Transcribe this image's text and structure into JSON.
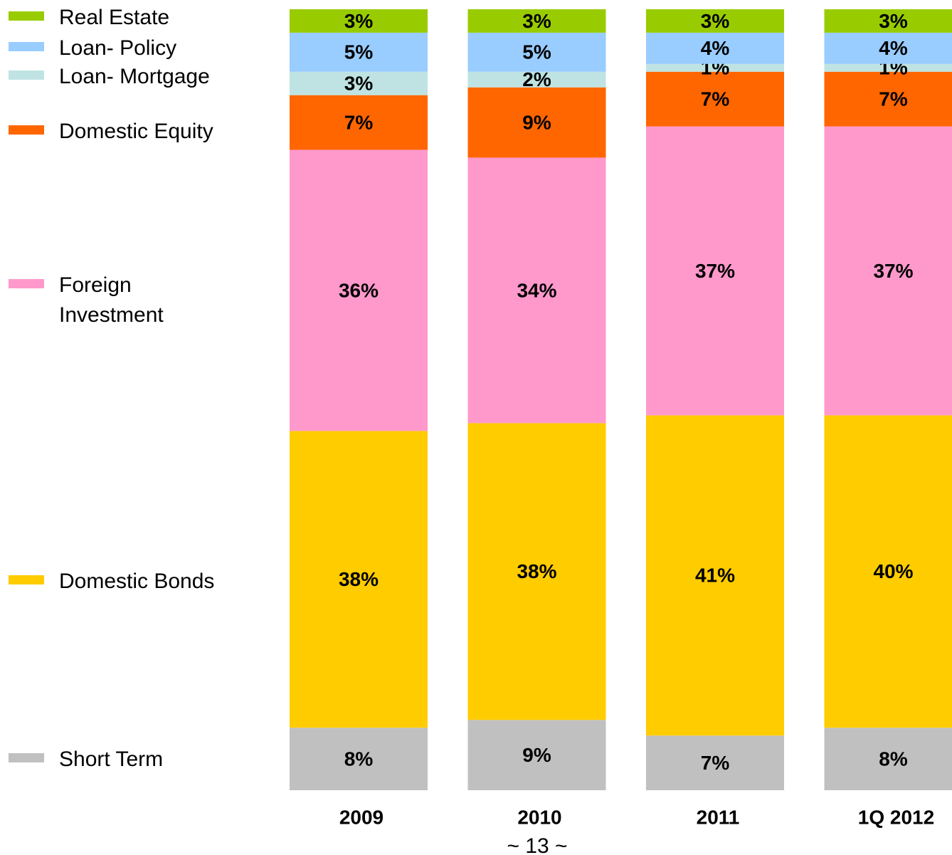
{
  "chart_data": {
    "type": "stacked_bar",
    "categories": [
      "2009",
      "2010",
      "2011",
      "1Q 2012"
    ],
    "series": [
      {
        "name": "Short Term",
        "color": "#c0c0c0",
        "values": [
          8,
          9,
          7,
          8
        ],
        "value_labels": [
          "8%",
          "9%",
          "7%",
          "8%"
        ]
      },
      {
        "name": "Domestic Bonds",
        "color": "#ffcc00",
        "values": [
          38,
          38,
          41,
          40
        ],
        "value_labels": [
          "38%",
          "38%",
          "41%",
          "40%"
        ]
      },
      {
        "name": "Foreign Investment",
        "color": "#ff99cc",
        "values": [
          36,
          34,
          37,
          37
        ],
        "value_labels": [
          "36%",
          "34%",
          "37%",
          "37%"
        ]
      },
      {
        "name": "Domestic Equity",
        "color": "#ff6600",
        "values": [
          7,
          9,
          7,
          7
        ],
        "value_labels": [
          "7%",
          "9%",
          "7%",
          "7%"
        ]
      },
      {
        "name": "Loan- Mortgage",
        "color": "#bfe3e3",
        "values": [
          3,
          2,
          1,
          1
        ],
        "value_labels": [
          "3%",
          "2%",
          "1%",
          "1%"
        ]
      },
      {
        "name": "Loan- Policy",
        "color": "#99ccff",
        "values": [
          5,
          5,
          4,
          4
        ],
        "value_labels": [
          "5%",
          "5%",
          "4%",
          "4%"
        ]
      },
      {
        "name": "Real Estate",
        "color": "#99cc00",
        "values": [
          3,
          3,
          3,
          3
        ],
        "value_labels": [
          "3%",
          "3%",
          "3%",
          "3%"
        ]
      }
    ]
  },
  "footer": "~ 13 ~"
}
